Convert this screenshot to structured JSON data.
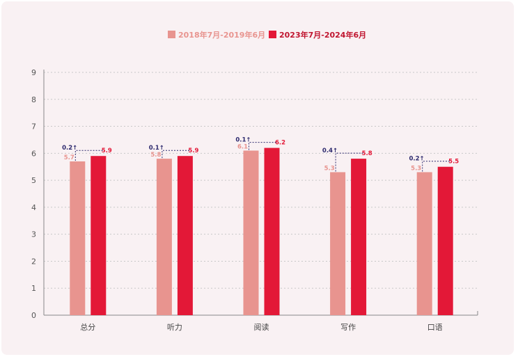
{
  "chart_data": {
    "type": "bar",
    "categories": [
      "总分",
      "听力",
      "阅读",
      "写作",
      "口语"
    ],
    "series": [
      {
        "name": "2018年7月-2019年6月",
        "values": [
          5.7,
          5.8,
          6.1,
          5.3,
          5.3
        ],
        "color": "#e8948f"
      },
      {
        "name": "2023年7月-2024年6月",
        "values": [
          5.9,
          5.9,
          6.2,
          5.8,
          5.5
        ],
        "color": "#e31837"
      }
    ],
    "diff_labels": [
      "0.2↑",
      "0.1↑",
      "0.1↑",
      "0.4↑",
      "0.2↑"
    ],
    "ylim": [
      0,
      9
    ],
    "yticks": [
      0,
      1,
      2,
      3,
      4,
      5,
      6,
      7,
      8,
      9
    ],
    "grid": true,
    "legend_position": "top-center",
    "colors": {
      "diff": "#2d2a6e",
      "axis": "#888888",
      "grid": "#c8c8c8"
    }
  }
}
